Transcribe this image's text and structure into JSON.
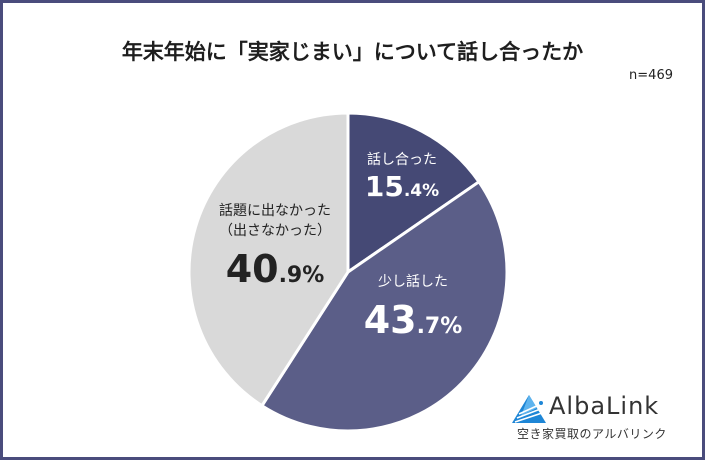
{
  "title": "年末年始に「実家じまい」について話し合ったか",
  "sample_size": "n=469",
  "colors": {
    "talked": "#454975",
    "little": "#5b5e88",
    "none": "#d9d9d9",
    "border": "#4a4c7c",
    "logo_blue": "#1e86d6"
  },
  "labels": {
    "talked": {
      "name": "話し合った",
      "pct_int": "15",
      "pct_dec": ".4%"
    },
    "little": {
      "name": "少し話した",
      "pct_int": "43",
      "pct_dec": ".7%"
    },
    "none": {
      "name_line1": "話題に出なかった",
      "name_line2": "（出さなかった）",
      "pct_int": "40",
      "pct_dec": ".9%"
    }
  },
  "logo": {
    "wordmark": "AlbaLink",
    "tagline": "空き家買取のアルバリンク"
  },
  "chart_data": {
    "type": "pie",
    "title": "年末年始に「実家じまい」について話し合ったか",
    "annotation": "n=469",
    "categories": [
      "話し合った",
      "少し話した",
      "話題に出なかった（出さなかった）"
    ],
    "values": [
      15.4,
      43.7,
      40.9
    ],
    "unit": "%",
    "start_angle": "12 o'clock, clockwise",
    "legend": "none (labels inside slices)"
  }
}
